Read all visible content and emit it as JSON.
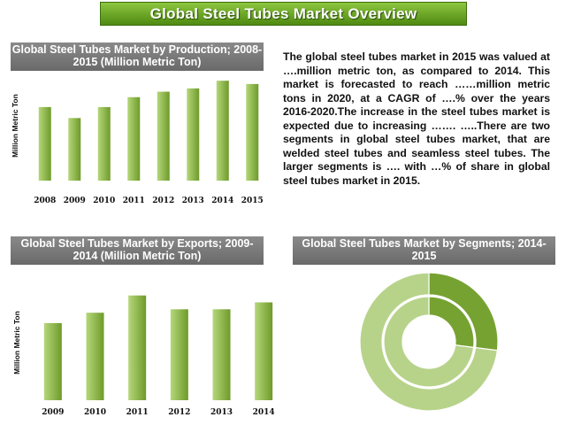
{
  "header": {
    "title": "Global Steel Tubes Market Overview"
  },
  "production_panel": {
    "title": "Global Steel Tubes Market by Production; 2008-2015 (Million Metric Ton)"
  },
  "exports_panel": {
    "title": "Global Steel Tubes Market by Exports; 2009-2014 (Million Metric Ton)"
  },
  "segments_panel": {
    "title": "Global Steel Tubes Market by Segments; 2014-2015"
  },
  "description": "The global steel tubes market in 2015 was valued at ….million metric ton, as compared to 2014. This market is forecasted to reach ……million metric tons in 2020, at a CAGR of ….% over the years 2016-2020.The increase in the steel tubes market is expected due to increasing ……. …..There are two segments in global steel tubes market, that are welded steel tubes and seamless steel tubes. The larger segments is …. with …% of share in global steel tubes market in 2015.",
  "colors": {
    "bar_light": "#b5d77a",
    "bar_dark": "#6e9a2a",
    "donut_dark": "#76a232",
    "donut_light": "#b7d38a"
  },
  "chart_data": [
    {
      "type": "bar",
      "categories": [
        "2008",
        "2009",
        "2010",
        "2011",
        "2012",
        "2013",
        "2014",
        "2015"
      ],
      "values": [
        67,
        57,
        67,
        76,
        81,
        84,
        91,
        88
      ],
      "ylabel": "Million Metric Ton",
      "ylim": [
        0,
        100
      ],
      "grid": false
    },
    {
      "type": "bar",
      "categories": [
        "2009",
        "2010",
        "2011",
        "2012",
        "2013",
        "2014"
      ],
      "values": [
        67,
        76,
        91,
        79,
        79,
        85
      ],
      "ylabel": "Million Metric Ton",
      "ylim": [
        0,
        100
      ],
      "grid": false
    },
    {
      "type": "pie",
      "rings": [
        {
          "slices": [
            27,
            73
          ]
        },
        {
          "slices": [
            27,
            73
          ]
        }
      ]
    }
  ]
}
